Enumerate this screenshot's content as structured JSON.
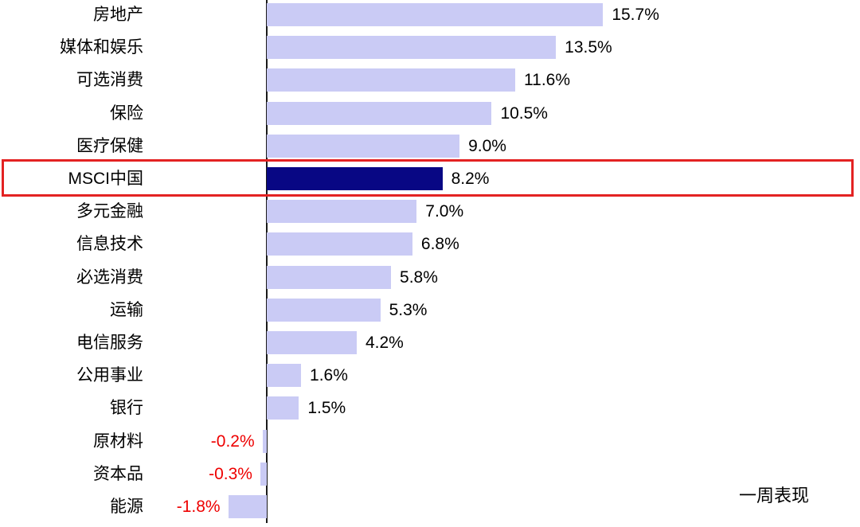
{
  "chart_data": {
    "type": "bar",
    "orientation": "horizontal",
    "title": "",
    "legend_label": "一周表现",
    "categories": [
      "房地产",
      "媒体和娱乐",
      "可选消费",
      "保险",
      "医疗保健",
      "MSCI中国",
      "多元金融",
      "信息技术",
      "必选消费",
      "运输",
      "电信服务",
      "公用事业",
      "银行",
      "原材料",
      "资本品",
      "能源"
    ],
    "values": [
      15.7,
      13.5,
      11.6,
      10.5,
      9.0,
      8.2,
      7.0,
      6.8,
      5.8,
      5.3,
      4.2,
      1.6,
      1.5,
      -0.2,
      -0.3,
      -1.8
    ],
    "value_labels": [
      "15.7%",
      "13.5%",
      "11.6%",
      "10.5%",
      "9.0%",
      "8.2%",
      "7.0%",
      "6.8%",
      "5.8%",
      "5.3%",
      "4.2%",
      "1.6%",
      "1.5%",
      "-0.2%",
      "-0.3%",
      "-1.8%"
    ],
    "highlight_category": "MSCI中国",
    "highlight_index": 5,
    "xlim": [
      -2,
      28
    ],
    "grid": false,
    "legend_position": "bottom-right",
    "colors": {
      "bar_default": "#cacbf5",
      "bar_highlight": "#080784",
      "negative_value_text": "#ee0000",
      "positive_value_text": "#000000",
      "highlight_box_border": "#e32222",
      "axis_line": "#1a1a1a"
    }
  }
}
